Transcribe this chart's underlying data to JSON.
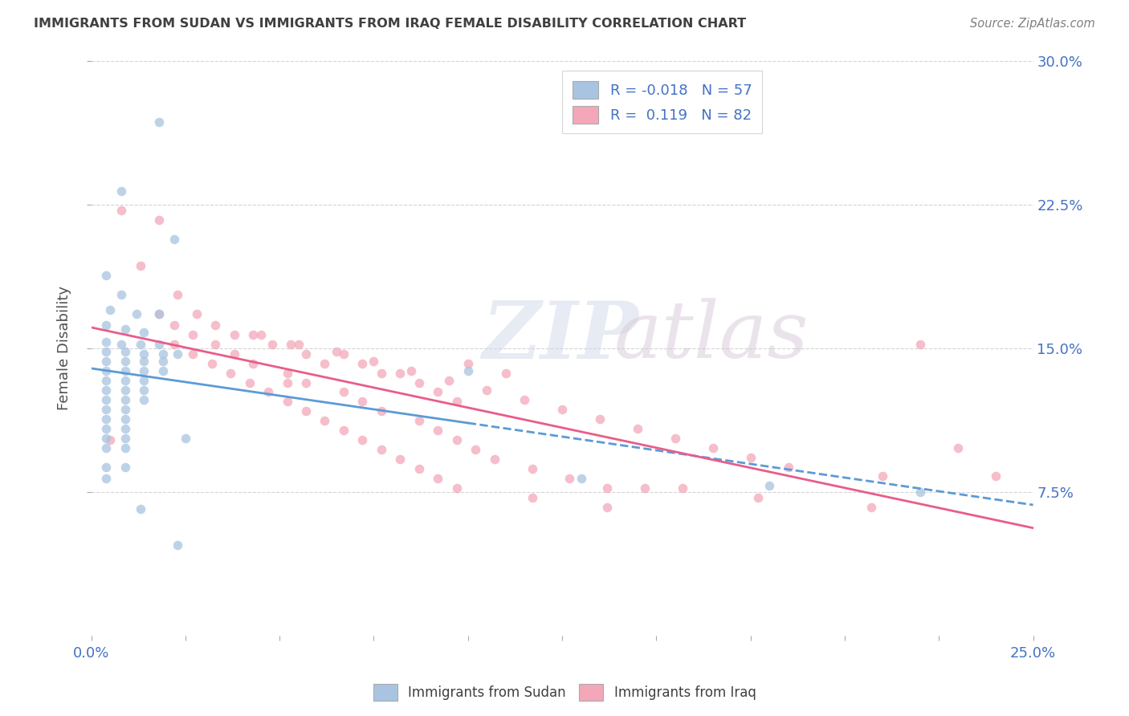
{
  "title": "IMMIGRANTS FROM SUDAN VS IMMIGRANTS FROM IRAQ FEMALE DISABILITY CORRELATION CHART",
  "source": "Source: ZipAtlas.com",
  "ylabel": "Female Disability",
  "r_sudan": -0.018,
  "n_sudan": 57,
  "r_iraq": 0.119,
  "n_iraq": 82,
  "xlim": [
    0.0,
    0.25
  ],
  "ylim": [
    0.0,
    0.3
  ],
  "ytick_vals": [
    0.075,
    0.15,
    0.225,
    0.3
  ],
  "ytick_labels": [
    "7.5%",
    "15.0%",
    "22.5%",
    "30.0%"
  ],
  "xtick_vals": [
    0.0,
    0.025,
    0.05,
    0.075,
    0.1,
    0.125,
    0.15,
    0.175,
    0.2,
    0.225,
    0.25
  ],
  "color_sudan": "#a8c4e0",
  "color_iraq": "#f4a7b9",
  "line_color_sudan_solid": "#5b9bd5",
  "line_color_sudan_dash": "#5b9bd5",
  "line_color_iraq": "#e85d8a",
  "bg_color": "#ffffff",
  "title_color": "#404040",
  "source_color": "#808080",
  "sudan_scatter": [
    [
      0.018,
      0.268
    ],
    [
      0.008,
      0.232
    ],
    [
      0.022,
      0.207
    ],
    [
      0.004,
      0.188
    ],
    [
      0.008,
      0.178
    ],
    [
      0.005,
      0.17
    ],
    [
      0.012,
      0.168
    ],
    [
      0.018,
      0.168
    ],
    [
      0.004,
      0.162
    ],
    [
      0.009,
      0.16
    ],
    [
      0.014,
      0.158
    ],
    [
      0.004,
      0.153
    ],
    [
      0.008,
      0.152
    ],
    [
      0.013,
      0.152
    ],
    [
      0.018,
      0.152
    ],
    [
      0.004,
      0.148
    ],
    [
      0.009,
      0.148
    ],
    [
      0.014,
      0.147
    ],
    [
      0.019,
      0.147
    ],
    [
      0.023,
      0.147
    ],
    [
      0.004,
      0.143
    ],
    [
      0.009,
      0.143
    ],
    [
      0.014,
      0.143
    ],
    [
      0.019,
      0.143
    ],
    [
      0.004,
      0.138
    ],
    [
      0.009,
      0.138
    ],
    [
      0.014,
      0.138
    ],
    [
      0.019,
      0.138
    ],
    [
      0.004,
      0.133
    ],
    [
      0.009,
      0.133
    ],
    [
      0.014,
      0.133
    ],
    [
      0.004,
      0.128
    ],
    [
      0.009,
      0.128
    ],
    [
      0.014,
      0.128
    ],
    [
      0.004,
      0.123
    ],
    [
      0.009,
      0.123
    ],
    [
      0.014,
      0.123
    ],
    [
      0.004,
      0.118
    ],
    [
      0.009,
      0.118
    ],
    [
      0.004,
      0.113
    ],
    [
      0.009,
      0.113
    ],
    [
      0.004,
      0.108
    ],
    [
      0.009,
      0.108
    ],
    [
      0.004,
      0.103
    ],
    [
      0.009,
      0.103
    ],
    [
      0.025,
      0.103
    ],
    [
      0.004,
      0.098
    ],
    [
      0.009,
      0.098
    ],
    [
      0.004,
      0.088
    ],
    [
      0.009,
      0.088
    ],
    [
      0.13,
      0.082
    ],
    [
      0.18,
      0.078
    ],
    [
      0.22,
      0.075
    ],
    [
      0.013,
      0.066
    ],
    [
      0.023,
      0.047
    ],
    [
      0.004,
      0.082
    ],
    [
      0.1,
      0.138
    ]
  ],
  "iraq_scatter": [
    [
      0.008,
      0.222
    ],
    [
      0.018,
      0.217
    ],
    [
      0.013,
      0.193
    ],
    [
      0.023,
      0.178
    ],
    [
      0.018,
      0.168
    ],
    [
      0.028,
      0.168
    ],
    [
      0.022,
      0.162
    ],
    [
      0.033,
      0.162
    ],
    [
      0.027,
      0.157
    ],
    [
      0.038,
      0.157
    ],
    [
      0.043,
      0.157
    ],
    [
      0.022,
      0.152
    ],
    [
      0.033,
      0.152
    ],
    [
      0.048,
      0.152
    ],
    [
      0.053,
      0.152
    ],
    [
      0.027,
      0.147
    ],
    [
      0.038,
      0.147
    ],
    [
      0.057,
      0.147
    ],
    [
      0.067,
      0.147
    ],
    [
      0.032,
      0.142
    ],
    [
      0.043,
      0.142
    ],
    [
      0.062,
      0.142
    ],
    [
      0.072,
      0.142
    ],
    [
      0.037,
      0.137
    ],
    [
      0.052,
      0.137
    ],
    [
      0.077,
      0.137
    ],
    [
      0.082,
      0.137
    ],
    [
      0.042,
      0.132
    ],
    [
      0.057,
      0.132
    ],
    [
      0.087,
      0.132
    ],
    [
      0.047,
      0.127
    ],
    [
      0.067,
      0.127
    ],
    [
      0.092,
      0.127
    ],
    [
      0.052,
      0.122
    ],
    [
      0.072,
      0.122
    ],
    [
      0.097,
      0.122
    ],
    [
      0.057,
      0.117
    ],
    [
      0.077,
      0.117
    ],
    [
      0.062,
      0.112
    ],
    [
      0.087,
      0.112
    ],
    [
      0.067,
      0.107
    ],
    [
      0.092,
      0.107
    ],
    [
      0.072,
      0.102
    ],
    [
      0.097,
      0.102
    ],
    [
      0.052,
      0.132
    ],
    [
      0.077,
      0.097
    ],
    [
      0.102,
      0.097
    ],
    [
      0.082,
      0.092
    ],
    [
      0.107,
      0.092
    ],
    [
      0.087,
      0.087
    ],
    [
      0.117,
      0.087
    ],
    [
      0.092,
      0.082
    ],
    [
      0.127,
      0.082
    ],
    [
      0.097,
      0.077
    ],
    [
      0.137,
      0.077
    ],
    [
      0.147,
      0.077
    ],
    [
      0.157,
      0.077
    ],
    [
      0.117,
      0.072
    ],
    [
      0.177,
      0.072
    ],
    [
      0.137,
      0.067
    ],
    [
      0.207,
      0.067
    ],
    [
      0.055,
      0.152
    ],
    [
      0.065,
      0.148
    ],
    [
      0.075,
      0.143
    ],
    [
      0.085,
      0.138
    ],
    [
      0.095,
      0.133
    ],
    [
      0.105,
      0.128
    ],
    [
      0.115,
      0.123
    ],
    [
      0.125,
      0.118
    ],
    [
      0.135,
      0.113
    ],
    [
      0.145,
      0.108
    ],
    [
      0.155,
      0.103
    ],
    [
      0.165,
      0.098
    ],
    [
      0.175,
      0.093
    ],
    [
      0.185,
      0.088
    ],
    [
      0.045,
      0.157
    ],
    [
      0.21,
      0.083
    ],
    [
      0.22,
      0.152
    ],
    [
      0.23,
      0.098
    ],
    [
      0.24,
      0.083
    ],
    [
      0.1,
      0.142
    ],
    [
      0.11,
      0.137
    ],
    [
      0.005,
      0.102
    ]
  ],
  "watermark_zip": "ZIP",
  "watermark_atlas": "atlas"
}
